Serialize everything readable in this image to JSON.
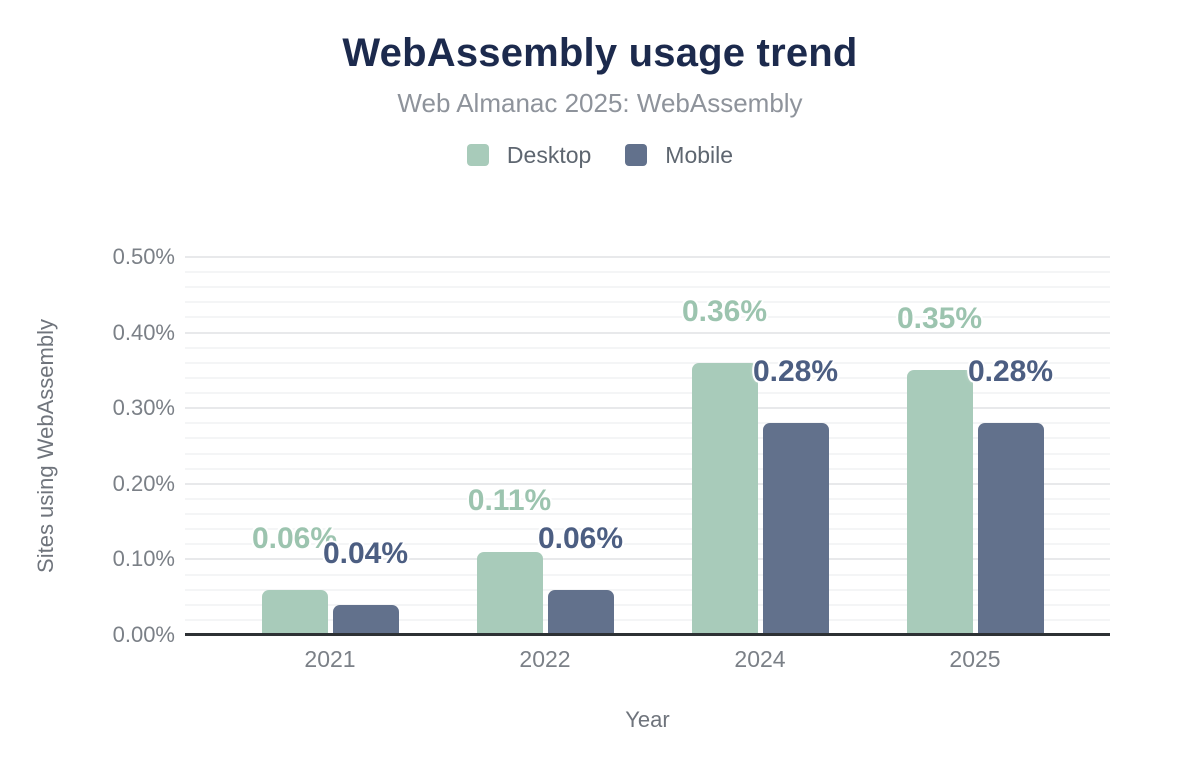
{
  "chart_data": {
    "type": "bar",
    "title": "WebAssembly usage trend",
    "subtitle": "Web Almanac 2025: WebAssembly",
    "categories": [
      "2021",
      "2022",
      "2024",
      "2025"
    ],
    "series": [
      {
        "name": "Desktop",
        "values": [
          0.06,
          0.11,
          0.36,
          0.35
        ],
        "data_labels": [
          "0.06%",
          "0.11%",
          "0.36%",
          "0.35%"
        ],
        "color": "#a8cbba",
        "label_color": "#9cc4af"
      },
      {
        "name": "Mobile",
        "values": [
          0.04,
          0.06,
          0.28,
          0.28
        ],
        "data_labels": [
          "0.04%",
          "0.06%",
          "0.28%",
          "0.28%"
        ],
        "color": "#62718c",
        "label_color": "#4c5e82"
      }
    ],
    "xlabel": "Year",
    "ylabel": "Sites using WebAssembly",
    "y_axis": {
      "min": 0,
      "max": 0.5,
      "unit": "%",
      "major_step": 0.1,
      "minor_step": 0.02,
      "tick_labels": [
        "0.00%",
        "0.10%",
        "0.20%",
        "0.30%",
        "0.40%",
        "0.50%"
      ]
    },
    "legend_position": "top",
    "grid": true
  },
  "colors": {
    "title": "#1c2a4d",
    "subtitle": "#8e939b",
    "axis_text": "#7b8087",
    "axis_title_text": "#6f747c",
    "legend_text": "#5e6670",
    "axis_line": "#2d3134",
    "grid_major": "#e8e9eb",
    "grid_minor": "#f4f5f6",
    "background": "#ffffff"
  }
}
